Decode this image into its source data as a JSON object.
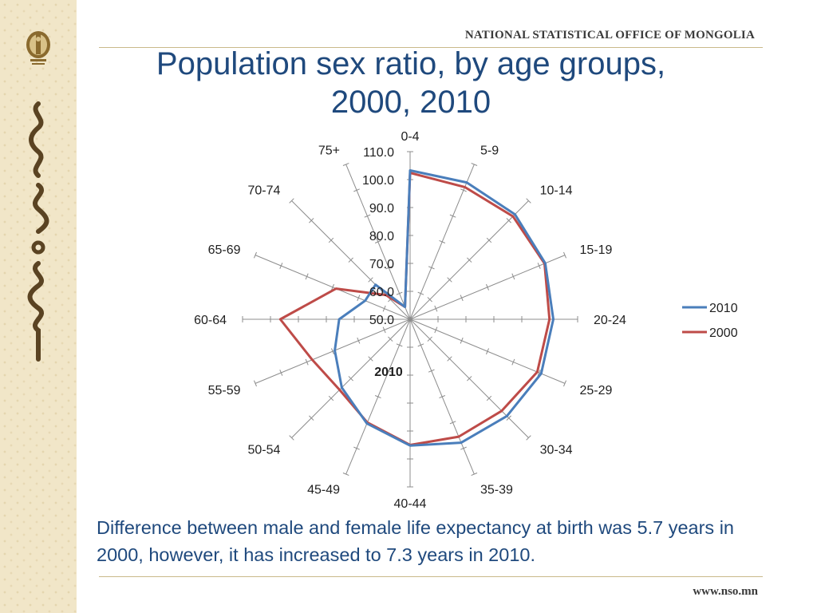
{
  "header": {
    "org_name": "NATIONAL STATISTICAL OFFICE OF MONGOLIA",
    "title_line1": "Population sex ratio, by age groups,",
    "title_line2": "2000, 2010"
  },
  "chart_data": {
    "type": "radar",
    "categories": [
      "0-4",
      "5-9",
      "10-14",
      "15-19",
      "20-24",
      "25-29",
      "30-34",
      "35-39",
      "40-44",
      "45-49",
      "50-54",
      "55-59",
      "60-64",
      "65-69",
      "70-74",
      "75+"
    ],
    "radial_ticks": [
      "50.0",
      "60.0",
      "70.0",
      "80.0",
      "90.0",
      "100.0",
      "110.0"
    ],
    "rlim": [
      50,
      110
    ],
    "center_label": "2010",
    "series": [
      {
        "name": "2010",
        "color": "#4a7ebb",
        "values": [
          103.3,
          103.0,
          103.1,
          102.4,
          101.3,
          100.8,
          99.0,
          97.8,
          95.2,
          90.4,
          84.6,
          79.2,
          75.4,
          67.4,
          67.5,
          54.8
        ]
      },
      {
        "name": "2000",
        "color": "#be4b48",
        "values": [
          102.4,
          101.2,
          102.1,
          102.1,
          99.9,
          99.3,
          96.4,
          95.5,
          95.0,
          90.0,
          85.7,
          87.9,
          96.5,
          78.7,
          62.3,
          54.8
        ]
      }
    ],
    "legend_position": "right",
    "grid": false
  },
  "footer": {
    "caption": "Difference between male and female life expectancy at birth was 5.7 years in 2000, however, it has increased to 7.3 years in 2010.",
    "website": "www.nso.mn"
  }
}
